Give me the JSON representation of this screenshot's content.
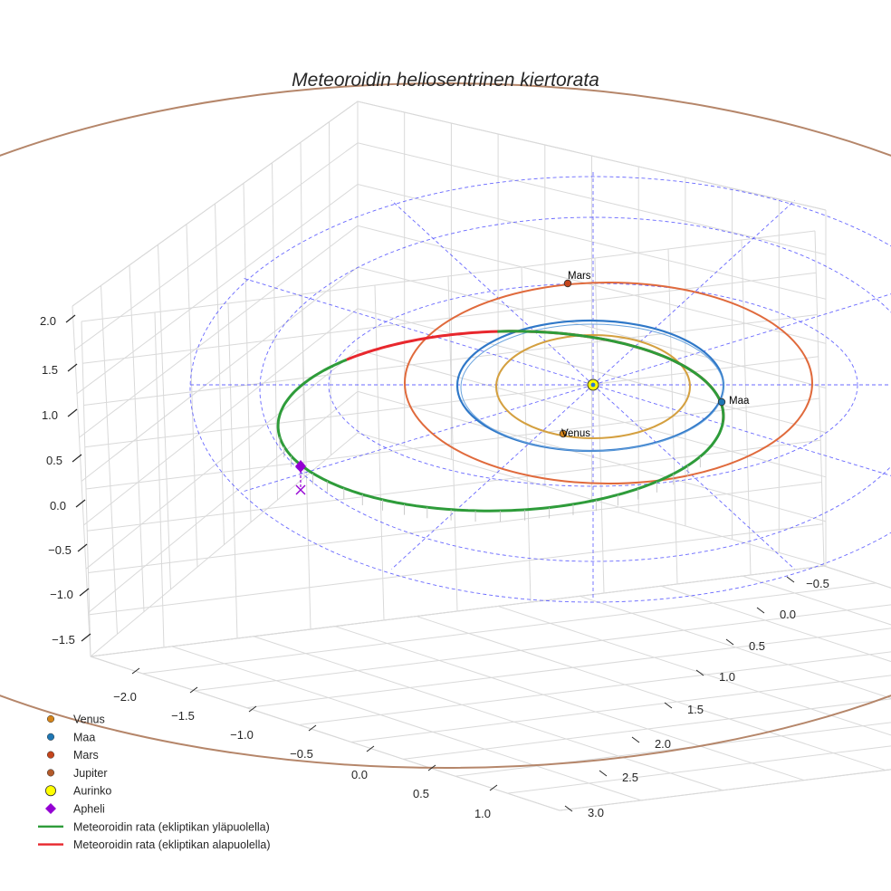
{
  "chart_data": {
    "type": "3d-line",
    "title": "Meteoroidin heliosentrinen kiertorata",
    "x_ticks": [
      "−2.0",
      "−1.5",
      "−1.0",
      "−0.5",
      "0.0",
      "0.5",
      "1.0"
    ],
    "y_ticks": [
      "−0.5",
      "0.0",
      "0.5",
      "1.0",
      "1.5",
      "2.0",
      "2.5",
      "3.0"
    ],
    "z_ticks": [
      "2.0",
      "1.5",
      "1.0",
      "0.5",
      "0.0",
      "−0.5",
      "−1.0",
      "−1.5"
    ],
    "planet_orbits": [
      {
        "name": "Venus",
        "radius_au": 0.72,
        "color": "#d4a040"
      },
      {
        "name": "Maa",
        "radius_au": 1.0,
        "color": "#2f78c8"
      },
      {
        "name": "Mars",
        "radius_au": 1.52,
        "color": "#e06a3c"
      },
      {
        "name": "Jupiter",
        "radius_au": 5.2,
        "color": "#b5866a"
      }
    ],
    "planet_labels": [
      {
        "name": "Mars",
        "text": "Mars"
      },
      {
        "name": "Maa",
        "text": "Maa"
      },
      {
        "name": "Venus",
        "text": "Venus"
      }
    ],
    "meteoroid_orbit": {
      "above_ecliptic_color": "#2e9c3a",
      "below_ecliptic_color": "#e8272d",
      "aphelion_marker_color": "#9400d3"
    },
    "sun_color": "#ffff00",
    "legend": [
      {
        "label": "Venus",
        "marker": "circle",
        "color": "#d4841a"
      },
      {
        "label": "Maa",
        "marker": "circle",
        "color": "#1f77b4"
      },
      {
        "label": "Mars",
        "marker": "circle",
        "color": "#c4451c"
      },
      {
        "label": "Jupiter",
        "marker": "circle",
        "color": "#b35a2a"
      },
      {
        "label": "Aurinko",
        "marker": "circle-large",
        "color": "#ffff00"
      },
      {
        "label": "Apheli",
        "marker": "diamond",
        "color": "#9400d3"
      },
      {
        "label": "Meteoroidin rata (ekliptikan yläpuolella)",
        "marker": "line",
        "color": "#2e9c3a"
      },
      {
        "label": "Meteoroidin rata (ekliptikan alapuolella)",
        "marker": "line",
        "color": "#e8272d"
      }
    ]
  }
}
